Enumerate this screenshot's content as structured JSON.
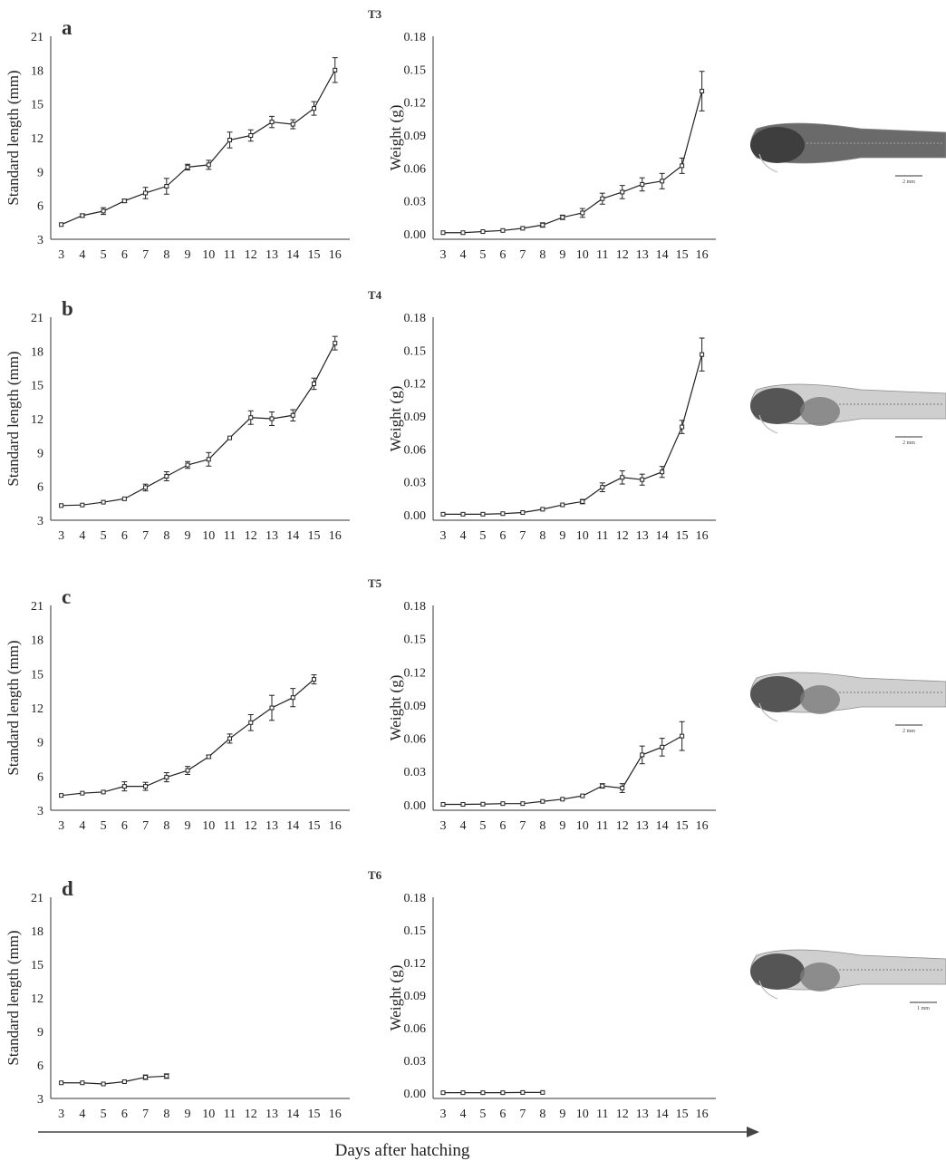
{
  "x_axis": {
    "label": "Days after hatching"
  },
  "chart_data": [
    {
      "type": "line",
      "panel": "a",
      "ylabel": "Standard length  (mm)",
      "x": [
        3,
        4,
        5,
        6,
        7,
        8,
        9,
        10,
        11,
        12,
        13,
        14,
        15,
        16
      ],
      "xticks": [
        "3",
        "4",
        "5",
        "6",
        "7",
        "8",
        "9",
        "10",
        "11",
        "12",
        "13",
        "14",
        "15",
        "16"
      ],
      "xlim": [
        2.5,
        16.7
      ],
      "ylim": [
        3,
        21
      ],
      "yticks": [
        "3",
        "6",
        "9",
        "12",
        "15",
        "18",
        "21"
      ],
      "values": [
        4.3,
        5.1,
        5.5,
        6.4,
        7.1,
        7.7,
        9.4,
        9.6,
        11.8,
        12.2,
        13.4,
        13.2,
        14.6,
        18.0
      ],
      "errors": [
        0.1,
        0.15,
        0.3,
        0.15,
        0.5,
        0.7,
        0.25,
        0.4,
        0.7,
        0.5,
        0.5,
        0.4,
        0.6,
        1.1
      ]
    },
    {
      "type": "line",
      "panel": "T3",
      "ylabel": "Weight (g)",
      "x": [
        3,
        4,
        5,
        6,
        7,
        8,
        9,
        10,
        11,
        12,
        13,
        14,
        15,
        16
      ],
      "xticks": [
        "3",
        "4",
        "5",
        "6",
        "7",
        "8",
        "9",
        "10",
        "11",
        "12",
        "13",
        "14",
        "15",
        "16"
      ],
      "xlim": [
        2.5,
        16.7
      ],
      "ylim": [
        -0.005,
        0.18
      ],
      "yticks": [
        "0.00",
        "0.03",
        "0.06",
        "0.09",
        "0.12",
        "0.15",
        "0.18"
      ],
      "values": [
        0.001,
        0.001,
        0.002,
        0.003,
        0.005,
        0.008,
        0.015,
        0.019,
        0.032,
        0.038,
        0.045,
        0.048,
        0.062,
        0.13
      ],
      "errors": [
        0.0003,
        0.0003,
        0.0005,
        0.0005,
        0.001,
        0.002,
        0.002,
        0.004,
        0.005,
        0.006,
        0.006,
        0.007,
        0.007,
        0.018
      ]
    },
    {
      "type": "line",
      "panel": "b",
      "ylabel": "Standard length  (mm)",
      "x": [
        3,
        4,
        5,
        6,
        7,
        8,
        9,
        10,
        11,
        12,
        13,
        14,
        15,
        16
      ],
      "xticks": [
        "3",
        "4",
        "5",
        "6",
        "7",
        "8",
        "9",
        "10",
        "11",
        "12",
        "13",
        "14",
        "15",
        "16"
      ],
      "xlim": [
        2.5,
        16.7
      ],
      "ylim": [
        3,
        21
      ],
      "yticks": [
        "3",
        "6",
        "9",
        "12",
        "15",
        "18",
        "21"
      ],
      "values": [
        4.3,
        4.35,
        4.6,
        4.9,
        5.9,
        6.9,
        7.9,
        8.4,
        10.3,
        12.1,
        12.0,
        12.3,
        15.1,
        18.7
      ],
      "errors": [
        0.1,
        0.1,
        0.1,
        0.1,
        0.3,
        0.4,
        0.3,
        0.6,
        0.1,
        0.6,
        0.6,
        0.5,
        0.5,
        0.6
      ]
    },
    {
      "type": "line",
      "panel": "T4",
      "ylabel": "Weight (g)",
      "x": [
        3,
        4,
        5,
        6,
        7,
        8,
        9,
        10,
        11,
        12,
        13,
        14,
        15,
        16
      ],
      "xticks": [
        "3",
        "4",
        "5",
        "6",
        "7",
        "8",
        "9",
        "10",
        "11",
        "12",
        "13",
        "14",
        "15",
        "16"
      ],
      "xlim": [
        2.5,
        16.7
      ],
      "ylim": [
        -0.005,
        0.18
      ],
      "yticks": [
        "0.00",
        "0.03",
        "0.06",
        "0.09",
        "0.12",
        "0.15",
        "0.18"
      ],
      "values": [
        0.0005,
        0.0005,
        0.0005,
        0.001,
        0.002,
        0.005,
        0.009,
        0.012,
        0.025,
        0.034,
        0.032,
        0.039,
        0.08,
        0.146
      ],
      "errors": [
        0.0002,
        0.0002,
        0.0002,
        0.0003,
        0.0005,
        0.001,
        0.001,
        0.002,
        0.004,
        0.006,
        0.005,
        0.005,
        0.006,
        0.015
      ]
    },
    {
      "type": "line",
      "panel": "c",
      "ylabel": "Standard length  (mm)",
      "x": [
        3,
        4,
        5,
        6,
        7,
        8,
        9,
        10,
        11,
        12,
        13,
        14,
        15
      ],
      "xticks": [
        "3",
        "4",
        "5",
        "6",
        "7",
        "8",
        "9",
        "10",
        "11",
        "12",
        "13",
        "14",
        "15",
        "16"
      ],
      "xlim": [
        2.5,
        16.7
      ],
      "ylim": [
        3,
        21
      ],
      "yticks": [
        "3",
        "6",
        "9",
        "12",
        "15",
        "18",
        "21"
      ],
      "values": [
        4.3,
        4.5,
        4.6,
        5.1,
        5.1,
        5.9,
        6.5,
        7.7,
        9.3,
        10.7,
        12.0,
        12.9,
        14.5
      ],
      "errors": [
        0.05,
        0.1,
        0.1,
        0.4,
        0.35,
        0.4,
        0.35,
        0.15,
        0.4,
        0.7,
        1.1,
        0.8,
        0.4
      ]
    },
    {
      "type": "line",
      "panel": "T5",
      "ylabel": "Weight (g)",
      "x": [
        3,
        4,
        5,
        6,
        7,
        8,
        9,
        10,
        11,
        12,
        13,
        14,
        15
      ],
      "xticks": [
        "3",
        "4",
        "5",
        "6",
        "7",
        "8",
        "9",
        "10",
        "11",
        "12",
        "13",
        "14",
        "15",
        "16"
      ],
      "xlim": [
        2.5,
        16.7
      ],
      "ylim": [
        -0.005,
        0.18
      ],
      "yticks": [
        "0.00",
        "0.03",
        "0.06",
        "0.09",
        "0.12",
        "0.15",
        "0.18"
      ],
      "values": [
        0.0003,
        0.0003,
        0.0005,
        0.001,
        0.001,
        0.003,
        0.005,
        0.008,
        0.017,
        0.015,
        0.045,
        0.052,
        0.062
      ],
      "errors": [
        0.0001,
        0.0001,
        0.0002,
        0.0003,
        0.0003,
        0.0005,
        0.001,
        0.001,
        0.002,
        0.004,
        0.008,
        0.008,
        0.013
      ]
    },
    {
      "type": "line",
      "panel": "d",
      "ylabel": "Standard length  (mm)",
      "x": [
        3,
        4,
        5,
        6,
        7,
        8
      ],
      "xticks": [
        "3",
        "4",
        "5",
        "6",
        "7",
        "8",
        "9",
        "10",
        "11",
        "12",
        "13",
        "14",
        "15",
        "16"
      ],
      "xlim": [
        2.5,
        16.7
      ],
      "ylim": [
        3,
        21
      ],
      "yticks": [
        "3",
        "6",
        "9",
        "12",
        "15",
        "18",
        "21"
      ],
      "values": [
        4.4,
        4.4,
        4.3,
        4.5,
        4.9,
        5.0
      ],
      "errors": [
        0.05,
        0.05,
        0.05,
        0.1,
        0.2,
        0.2
      ]
    },
    {
      "type": "line",
      "panel": "T6",
      "ylabel": "Weight (g)",
      "x": [
        3,
        4,
        5,
        6,
        7,
        8
      ],
      "xticks": [
        "3",
        "4",
        "5",
        "6",
        "7",
        "8",
        "9",
        "10",
        "11",
        "12",
        "13",
        "14",
        "15",
        "16"
      ],
      "xlim": [
        2.5,
        16.7
      ],
      "ylim": [
        -0.005,
        0.18
      ],
      "yticks": [
        "0.00",
        "0.03",
        "0.06",
        "0.09",
        "0.12",
        "0.15",
        "0.18"
      ],
      "values": [
        0.0003,
        0.0003,
        0.0003,
        0.0003,
        0.0005,
        0.0005
      ],
      "errors": [
        0.0001,
        0.0001,
        0.0001,
        0.0001,
        0.0001,
        0.0001
      ]
    }
  ],
  "photos": [
    {
      "panel": "T3",
      "scale_bar": "2 mm"
    },
    {
      "panel": "T4",
      "scale_bar": "2 mm"
    },
    {
      "panel": "T5",
      "scale_bar": "2 mm"
    },
    {
      "panel": "T6",
      "scale_bar": "1 mm"
    }
  ]
}
